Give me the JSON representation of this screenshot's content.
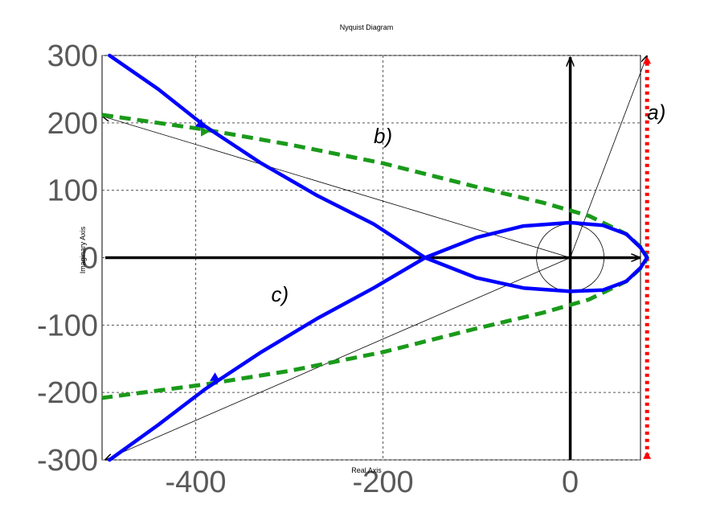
{
  "chart_data": {
    "type": "line",
    "title": "Nyquist Diagram",
    "xlabel": "Real Axis",
    "ylabel": "Imaginary Axis",
    "xlim": [
      -500,
      75
    ],
    "ylim": [
      -300,
      300
    ],
    "grid": true,
    "xticks": [
      {
        "value": -400,
        "label": "-400"
      },
      {
        "value": -200,
        "label": "-200"
      },
      {
        "value": 0,
        "label": "0"
      }
    ],
    "yticks": [
      {
        "value": 300,
        "label": "300"
      },
      {
        "value": 200,
        "label": "200"
      },
      {
        "value": 100,
        "label": "100"
      },
      {
        "value": 0,
        "label": "0"
      },
      {
        "value": -100,
        "label": "-100"
      },
      {
        "value": -200,
        "label": "-200"
      },
      {
        "value": -300,
        "label": "-300"
      }
    ],
    "series": [
      {
        "name": "a)",
        "color": "#ff0000",
        "style": "dotted",
        "points": [
          [
            82,
            -295
          ],
          [
            82,
            0
          ],
          [
            82,
            295
          ]
        ]
      },
      {
        "name": "b)",
        "color": "#1a9a1a",
        "style": "dashed",
        "points": [
          [
            -500,
            212
          ],
          [
            -390,
            190
          ],
          [
            -300,
            168
          ],
          [
            -200,
            140
          ],
          [
            -100,
            105
          ],
          [
            -30,
            82
          ],
          [
            20,
            62
          ],
          [
            60,
            35
          ],
          [
            78,
            12
          ],
          [
            82,
            0
          ],
          [
            78,
            -12
          ],
          [
            60,
            -35
          ],
          [
            20,
            -62
          ],
          [
            -30,
            -82
          ],
          [
            -100,
            -105
          ],
          [
            -200,
            -140
          ],
          [
            -300,
            -168
          ],
          [
            -390,
            -188
          ],
          [
            -500,
            -208
          ]
        ]
      },
      {
        "name": "c)",
        "color": "#0000ff",
        "style": "solid",
        "points": [
          [
            -492,
            300
          ],
          [
            -440,
            250
          ],
          [
            -390,
            195
          ],
          [
            -330,
            140
          ],
          [
            -270,
            92
          ],
          [
            -210,
            50
          ],
          [
            -155,
            0
          ],
          [
            -100,
            -30
          ],
          [
            -50,
            -45
          ],
          [
            0,
            -50
          ],
          [
            35,
            -48
          ],
          [
            60,
            -35
          ],
          [
            75,
            -15
          ],
          [
            82,
            0
          ],
          [
            75,
            15
          ],
          [
            60,
            35
          ],
          [
            35,
            48
          ],
          [
            0,
            52
          ],
          [
            -50,
            47
          ],
          [
            -100,
            30
          ],
          [
            -155,
            0
          ],
          [
            -210,
            -45
          ],
          [
            -270,
            -90
          ],
          [
            -330,
            -140
          ],
          [
            -390,
            -195
          ],
          [
            -440,
            -248
          ],
          [
            -492,
            -300
          ]
        ]
      }
    ],
    "annotations": [
      {
        "text": "a)",
        "x": 92,
        "y": 205
      },
      {
        "text": "b)",
        "x": -200,
        "y": 170
      },
      {
        "text": "c)",
        "x": -310,
        "y": -65
      }
    ]
  }
}
